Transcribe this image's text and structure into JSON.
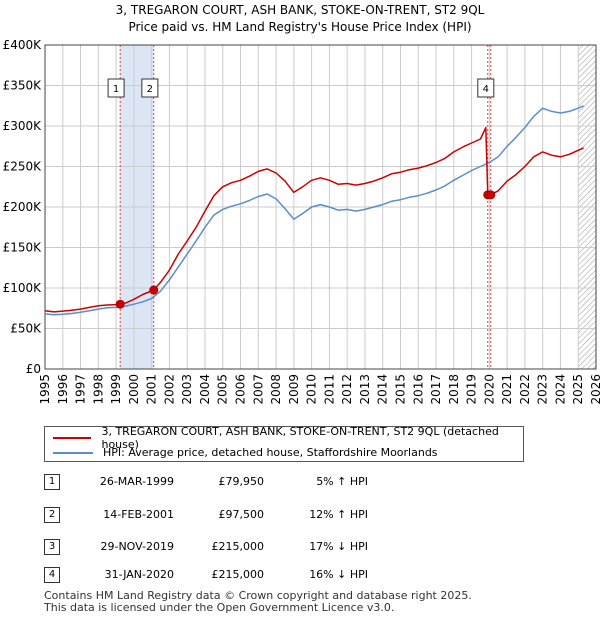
{
  "title_line1": "3, TREGARON COURT, ASH BANK, STOKE-ON-TRENT, ST2 9QL",
  "title_line2": "Price paid vs. HM Land Registry's House Price Index (HPI)",
  "colors": {
    "property": "#cc0000",
    "hpi": "#5b8ccc",
    "shade": "#dde6f5",
    "grid": "#cccccc",
    "marker_line": "#dd4444"
  },
  "chart_data": {
    "type": "line",
    "xlim": [
      1995,
      2026
    ],
    "ylim": [
      0,
      400000
    ],
    "x_ticks": [
      "1995",
      "1996",
      "1997",
      "1998",
      "1999",
      "2000",
      "2001",
      "2002",
      "2003",
      "2004",
      "2005",
      "2006",
      "2007",
      "2008",
      "2009",
      "2010",
      "2011",
      "2012",
      "2013",
      "2014",
      "2015",
      "2016",
      "2017",
      "2018",
      "2019",
      "2020",
      "2021",
      "2022",
      "2023",
      "2024",
      "2025",
      "2026"
    ],
    "y_ticks": [
      {
        "value": 0,
        "label": "£0"
      },
      {
        "value": 50000,
        "label": "£50K"
      },
      {
        "value": 100000,
        "label": "£100K"
      },
      {
        "value": 150000,
        "label": "£150K"
      },
      {
        "value": 200000,
        "label": "£200K"
      },
      {
        "value": 250000,
        "label": "£250K"
      },
      {
        "value": 300000,
        "label": "£300K"
      },
      {
        "value": 350000,
        "label": "£350K"
      },
      {
        "value": 400000,
        "label": "£400K"
      }
    ],
    "shaded_ranges": [
      [
        1999.23,
        2001.12
      ]
    ],
    "forecast_from": 2025.0,
    "series": [
      {
        "name": "3, TREGARON COURT, ASH BANK, STOKE-ON-TRENT, ST2 9QL (detached house)",
        "color": "#cc0000",
        "points": [
          [
            1995.0,
            72000
          ],
          [
            1995.5,
            70500
          ],
          [
            1996.0,
            71500
          ],
          [
            1996.5,
            72500
          ],
          [
            1997.0,
            74000
          ],
          [
            1997.5,
            76000
          ],
          [
            1998.0,
            78000
          ],
          [
            1998.5,
            79000
          ],
          [
            1999.0,
            79500
          ],
          [
            1999.23,
            79950
          ],
          [
            1999.6,
            82000
          ],
          [
            2000.0,
            86000
          ],
          [
            2000.5,
            92000
          ],
          [
            2001.12,
            97500
          ],
          [
            2001.5,
            107000
          ],
          [
            2002.0,
            122000
          ],
          [
            2002.5,
            142000
          ],
          [
            2003.0,
            158000
          ],
          [
            2003.5,
            175000
          ],
          [
            2004.0,
            195000
          ],
          [
            2004.5,
            214000
          ],
          [
            2005.0,
            225000
          ],
          [
            2005.5,
            230000
          ],
          [
            2006.0,
            233000
          ],
          [
            2006.5,
            238000
          ],
          [
            2007.0,
            244000
          ],
          [
            2007.5,
            247000
          ],
          [
            2008.0,
            242000
          ],
          [
            2008.5,
            232000
          ],
          [
            2009.0,
            218000
          ],
          [
            2009.5,
            225000
          ],
          [
            2010.0,
            233000
          ],
          [
            2010.5,
            236000
          ],
          [
            2011.0,
            233000
          ],
          [
            2011.5,
            228000
          ],
          [
            2012.0,
            229000
          ],
          [
            2012.5,
            227000
          ],
          [
            2013.0,
            229000
          ],
          [
            2013.5,
            232000
          ],
          [
            2014.0,
            236000
          ],
          [
            2014.5,
            241000
          ],
          [
            2015.0,
            243000
          ],
          [
            2015.5,
            246000
          ],
          [
            2016.0,
            248000
          ],
          [
            2016.5,
            251000
          ],
          [
            2017.0,
            255000
          ],
          [
            2017.5,
            260000
          ],
          [
            2018.0,
            268000
          ],
          [
            2018.5,
            274000
          ],
          [
            2019.0,
            279000
          ],
          [
            2019.5,
            284000
          ],
          [
            2019.8,
            298000
          ],
          [
            2019.91,
            215000
          ],
          [
            2020.08,
            215000
          ],
          [
            2020.5,
            220000
          ],
          [
            2021.0,
            232000
          ],
          [
            2021.5,
            240000
          ],
          [
            2022.0,
            250000
          ],
          [
            2022.5,
            262000
          ],
          [
            2023.0,
            268000
          ],
          [
            2023.5,
            264000
          ],
          [
            2024.0,
            262000
          ],
          [
            2024.5,
            265000
          ],
          [
            2025.0,
            270000
          ],
          [
            2025.3,
            273000
          ]
        ]
      },
      {
        "name": "HPI: Average price, detached house, Staffordshire Moorlands",
        "color": "#5b8ccc",
        "points": [
          [
            1995.0,
            68000
          ],
          [
            1995.5,
            67000
          ],
          [
            1996.0,
            67500
          ],
          [
            1996.5,
            68500
          ],
          [
            1997.0,
            70000
          ],
          [
            1997.5,
            72000
          ],
          [
            1998.0,
            74000
          ],
          [
            1998.5,
            75500
          ],
          [
            1999.0,
            76000
          ],
          [
            1999.5,
            77500
          ],
          [
            2000.0,
            80000
          ],
          [
            2000.5,
            83000
          ],
          [
            2001.0,
            87000
          ],
          [
            2001.5,
            96000
          ],
          [
            2002.0,
            110000
          ],
          [
            2002.5,
            126000
          ],
          [
            2003.0,
            142000
          ],
          [
            2003.5,
            158000
          ],
          [
            2004.0,
            175000
          ],
          [
            2004.5,
            190000
          ],
          [
            2005.0,
            197000
          ],
          [
            2005.5,
            201000
          ],
          [
            2006.0,
            204000
          ],
          [
            2006.5,
            208000
          ],
          [
            2007.0,
            213000
          ],
          [
            2007.5,
            216000
          ],
          [
            2008.0,
            210000
          ],
          [
            2008.5,
            198000
          ],
          [
            2009.0,
            185000
          ],
          [
            2009.5,
            192000
          ],
          [
            2010.0,
            200000
          ],
          [
            2010.5,
            203000
          ],
          [
            2011.0,
            200000
          ],
          [
            2011.5,
            196000
          ],
          [
            2012.0,
            197000
          ],
          [
            2012.5,
            195000
          ],
          [
            2013.0,
            197000
          ],
          [
            2013.5,
            200000
          ],
          [
            2014.0,
            203000
          ],
          [
            2014.5,
            207000
          ],
          [
            2015.0,
            209000
          ],
          [
            2015.5,
            212000
          ],
          [
            2016.0,
            214000
          ],
          [
            2016.5,
            217000
          ],
          [
            2017.0,
            221000
          ],
          [
            2017.5,
            226000
          ],
          [
            2018.0,
            233000
          ],
          [
            2018.5,
            239000
          ],
          [
            2019.0,
            245000
          ],
          [
            2019.5,
            250000
          ],
          [
            2020.0,
            255000
          ],
          [
            2020.5,
            262000
          ],
          [
            2021.0,
            275000
          ],
          [
            2021.5,
            286000
          ],
          [
            2022.0,
            298000
          ],
          [
            2022.5,
            312000
          ],
          [
            2023.0,
            322000
          ],
          [
            2023.5,
            318000
          ],
          [
            2024.0,
            316000
          ],
          [
            2024.5,
            318000
          ],
          [
            2025.0,
            322000
          ],
          [
            2025.3,
            325000
          ]
        ]
      }
    ],
    "sale_markers": [
      {
        "label": "1",
        "x": 1999.23,
        "price": 79950
      },
      {
        "label": "2",
        "x": 2001.12,
        "price": 97500
      },
      {
        "label": "3",
        "x": 2019.91,
        "price": 215000
      },
      {
        "label": "4",
        "x": 2020.08,
        "price": 215000
      }
    ],
    "boxed_labels": [
      {
        "label": "1",
        "x": 1999.0
      },
      {
        "label": "2",
        "x": 2000.9
      },
      {
        "label": "4",
        "x": 2019.8
      }
    ]
  },
  "legend": {
    "property": "3, TREGARON COURT, ASH BANK, STOKE-ON-TRENT, ST2 9QL (detached house)",
    "hpi": "HPI: Average price, detached house, Staffordshire Moorlands"
  },
  "sales": [
    {
      "num": "1",
      "date": "26-MAR-1999",
      "price": "£79,950",
      "hpi": "5% ↑ HPI"
    },
    {
      "num": "2",
      "date": "14-FEB-2001",
      "price": "£97,500",
      "hpi": "12% ↑ HPI"
    },
    {
      "num": "3",
      "date": "29-NOV-2019",
      "price": "£215,000",
      "hpi": "17% ↓ HPI"
    },
    {
      "num": "4",
      "date": "31-JAN-2020",
      "price": "£215,000",
      "hpi": "16% ↓ HPI"
    }
  ],
  "footer_line1": "Contains HM Land Registry data © Crown copyright and database right 2025.",
  "footer_line2": "This data is licensed under the Open Government Licence v3.0."
}
